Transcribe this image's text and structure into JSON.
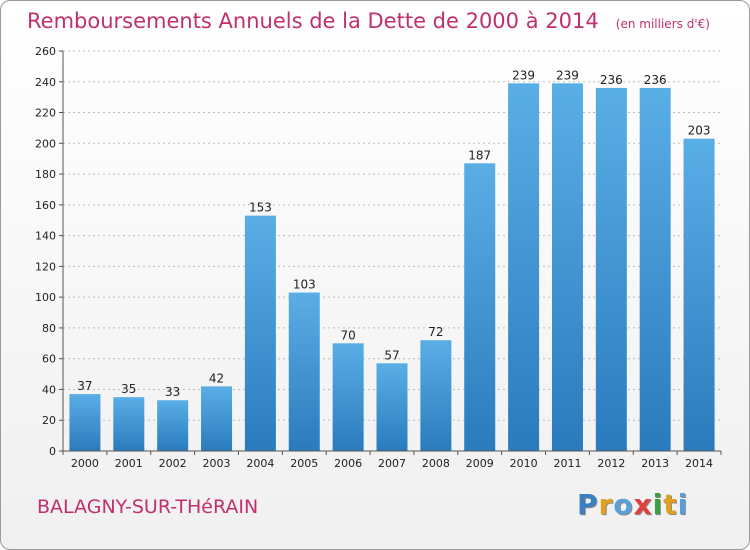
{
  "colors": {
    "title": "#c0306e",
    "bar_top": "#5aaee6",
    "bar_bottom": "#2a7bbd"
  },
  "chart_data": {
    "type": "bar",
    "title": "Remboursements Annuels de la Dette de 2000 à 2014",
    "unit": "(en milliers d'€)",
    "categories": [
      "2000",
      "2001",
      "2002",
      "2003",
      "2004",
      "2005",
      "2006",
      "2007",
      "2008",
      "2009",
      "2010",
      "2011",
      "2012",
      "2013",
      "2014"
    ],
    "values": [
      37,
      35,
      33,
      42,
      153,
      103,
      70,
      57,
      72,
      187,
      239,
      239,
      236,
      236,
      203
    ],
    "ylim": [
      0,
      260
    ],
    "yticks": [
      0,
      20,
      40,
      60,
      80,
      100,
      120,
      140,
      160,
      180,
      200,
      220,
      240,
      260
    ],
    "grid": true
  },
  "footer": {
    "city": "BALAGNY-SUR-THéRAIN",
    "brand": [
      "P",
      "r",
      "o",
      "x",
      "i",
      "t",
      "i"
    ],
    "brand_colors": [
      "#3a7fc4",
      "#e0a020",
      "#5aa0d8",
      "#e04040",
      "#3aa040",
      "#e0a020",
      "#5aa0d8"
    ]
  }
}
